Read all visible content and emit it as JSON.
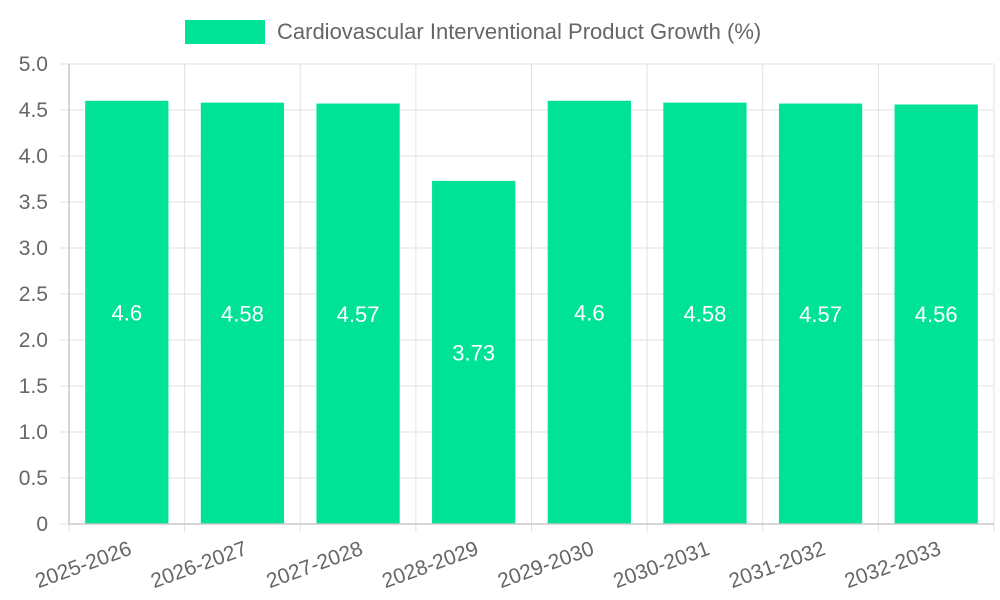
{
  "chart_data": {
    "type": "bar",
    "title": "",
    "xlabel": "",
    "ylabel": "",
    "categories": [
      "2025-2026",
      "2026-2027",
      "2027-2028",
      "2028-2029",
      "2029-2030",
      "2030-2031",
      "2031-2032",
      "2032-2033"
    ],
    "series": [
      {
        "name": "Cardiovascular Interventional Product Growth (%)",
        "values": [
          4.6,
          4.58,
          4.57,
          3.73,
          4.6,
          4.58,
          4.57,
          4.56
        ],
        "data_labels": [
          "4.6",
          "4.58",
          "4.57",
          "3.73",
          "4.6",
          "4.58",
          "4.57",
          "4.56"
        ],
        "color": "#00e396"
      }
    ],
    "ylim": [
      0,
      5
    ],
    "yticks": [
      "0",
      "0.5",
      "1.0",
      "1.5",
      "2.0",
      "2.5",
      "3.0",
      "3.5",
      "4.0",
      "4.5",
      "5.0"
    ],
    "ytick_values": [
      0,
      0.5,
      1,
      1.5,
      2,
      2.5,
      3,
      3.5,
      4,
      4.5,
      5
    ],
    "grid": true,
    "legend_position": "top-center",
    "colors": {
      "grid": "#e0e0e0",
      "axis": "#c8c8c8",
      "text": "#666666"
    }
  }
}
